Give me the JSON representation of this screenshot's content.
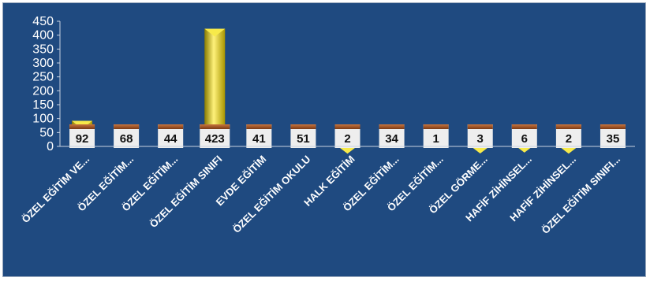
{
  "chart_data": {
    "type": "bar",
    "title": "",
    "xlabel": "",
    "ylabel": "",
    "ylim": [
      0,
      450
    ],
    "yticks": [
      0,
      50,
      100,
      150,
      200,
      250,
      300,
      350,
      400,
      450
    ],
    "grid": false,
    "categories": [
      "ÖZEL EĞİTİM VE...",
      "ÖZEL EĞİTİM...",
      "ÖZEL EĞİTİM...",
      "ÖZEL EĞİTİM SINIFI",
      "EVDE EĞİTİM",
      "ÖZEL EĞİTİM OKULU",
      "HALK EĞİTİM",
      "ÖZEL EĞİTİM...",
      "ÖZEL EĞİTİM...",
      "ÖZEL GÖRME...",
      "HAFİF ZİHİNSEL...",
      "HAFİF ZİHİNSEL...",
      "ÖZEL EĞİTİM SINIFI..."
    ],
    "values": [
      92,
      68,
      44,
      423,
      41,
      51,
      2,
      34,
      1,
      3,
      6,
      2,
      35
    ],
    "data_labels": [
      "92",
      "68",
      "44",
      "423",
      "41",
      "51",
      "2",
      "34",
      "1",
      "3",
      "6",
      "2",
      "35"
    ],
    "colors": {
      "background": "#1f4a80",
      "bar": "#d4c21a",
      "bar_highlight": "#fff27a",
      "bar_shadow": "#8a7b00",
      "label_box": "#eeeeee",
      "label_top": "#a0522d"
    }
  }
}
